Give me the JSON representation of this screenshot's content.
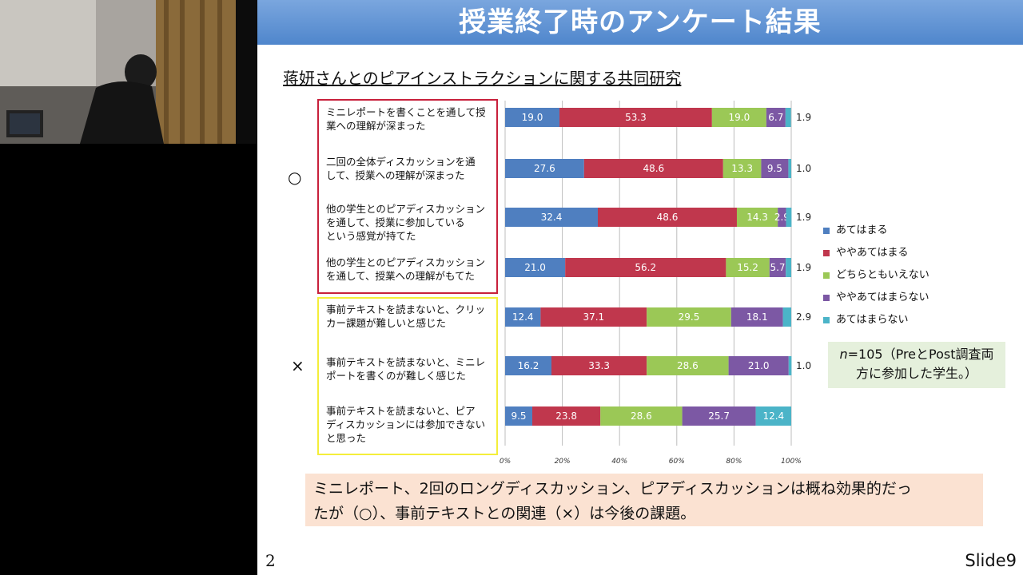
{
  "slide": {
    "title": "授業終了時のアンケート結果",
    "subtitle": "蒋妍さんとのピアインストラクションに関する共同研究",
    "mark_good": "○",
    "mark_bad": "×",
    "n_note_n": "n",
    "n_note_rest1": "=105（PreとPost調査両",
    "n_note_line2": "方に参加した学生。）",
    "conclusion_line1": "ミニレポート、2回のロングディスカッション、ピアディスカッションは概ね効果的だっ",
    "conclusion_line2": "たが（○）、事前テキストとの関連（×）は今後の課題。",
    "page_number": "2",
    "slide_label": "Slide9"
  },
  "chart_data": {
    "type": "bar",
    "orientation": "horizontal",
    "stacked": "percent",
    "categories": [
      "ミニレポートを書くことを通して授業への理解が深まった",
      "二回の全体ディスカッションを通して、授業への理解が深まった",
      "他の学生とのピアディスカッションを通して、授業に参加しているという感覚が持てた",
      "他の学生とのピアディスカッションを通して、授業への理解がもてた",
      "事前テキストを読まないと、クリッカー課題が難しいと感じた",
      "事前テキストを読まないと、ミニレポートを書くのが難しく感じた",
      "事前テキストを読まないと、ピアディスカッションには参加できないと思った"
    ],
    "category_lines": [
      [
        "ミニレポートを書くことを通して授",
        "業への理解が深まった"
      ],
      [
        "二回の全体ディスカッションを通",
        "して、授業への理解が深まった"
      ],
      [
        "他の学生とのピアディスカッション",
        "を通して、授業に参加している",
        "という感覚が持てた"
      ],
      [
        "他の学生とのピアディスカッション",
        "を通して、授業への理解がもてた"
      ],
      [
        "事前テキストを読まないと、クリッ",
        "カー課題が難しいと感じた"
      ],
      [
        "事前テキストを読まないと、ミニレ",
        "ポートを書くのが難しく感じた"
      ],
      [
        "事前テキストを読まないと、ピア",
        "ディスカッションには参加できない",
        "と思った"
      ]
    ],
    "series": [
      {
        "name": "あてはまる",
        "color": "#4f7fc0",
        "values": [
          19.0,
          27.6,
          32.4,
          21.0,
          12.4,
          16.2,
          9.5
        ],
        "labels": [
          "19.0",
          "27.6",
          "32.4",
          "21.0",
          "12.4",
          "16.2",
          "9.5"
        ]
      },
      {
        "name": "ややあてはまる",
        "color": "#c0374d",
        "values": [
          53.3,
          48.6,
          48.6,
          56.2,
          37.1,
          33.3,
          23.8
        ],
        "labels": [
          "53.3",
          "48.6",
          "48.6",
          "56.2",
          "37.1",
          "33.3",
          "23.8"
        ]
      },
      {
        "name": "どちらともいえない",
        "color": "#9bc856",
        "values": [
          19.0,
          13.3,
          14.3,
          15.2,
          29.5,
          28.6,
          28.6
        ],
        "labels": [
          "19.0",
          "13.3",
          "14.3",
          "15.2",
          "29.5",
          "28.6",
          "28.6"
        ]
      },
      {
        "name": "ややあてはまらない",
        "color": "#7c58a4",
        "values": [
          6.7,
          9.5,
          2.9,
          5.7,
          18.1,
          21.0,
          25.7
        ],
        "labels": [
          "6.7",
          "9.5",
          "2.9",
          "5.7",
          "18.1",
          "21.0",
          "25.7"
        ]
      },
      {
        "name": "あてはまらない",
        "color": "#4bb4c8",
        "values": [
          1.9,
          1.0,
          1.9,
          1.9,
          2.9,
          1.0,
          12.4
        ],
        "labels": [
          "1.9",
          "1.0",
          "1.9",
          "1.9",
          "2.9",
          "1.0",
          "12.4"
        ]
      }
    ],
    "xlim": [
      0,
      100
    ],
    "x_ticks": [
      "0%",
      "20%",
      "40%",
      "60%",
      "80%",
      "100%"
    ],
    "grid": true,
    "legend": "right"
  }
}
